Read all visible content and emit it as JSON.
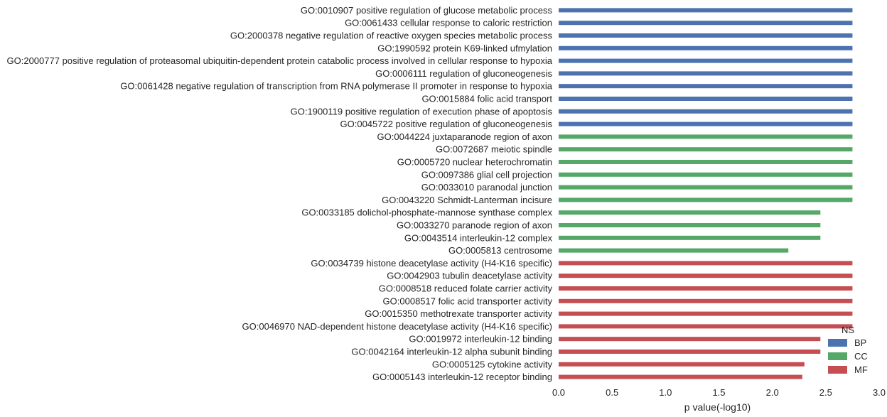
{
  "chart_data": {
    "type": "bar",
    "orientation": "horizontal",
    "xlabel": "p value(-log10)",
    "xlim": [
      0.0,
      3.0
    ],
    "xticks": [
      "0.0",
      "0.5",
      "1.0",
      "1.5",
      "2.0",
      "2.5",
      "3.0"
    ],
    "grid": false,
    "legend": {
      "title": "NS",
      "placement": "bottom-right",
      "entries": [
        {
          "name": "BP",
          "color": "#4c72b0"
        },
        {
          "name": "CC",
          "color": "#55a868"
        },
        {
          "name": "MF",
          "color": "#c44e52"
        }
      ]
    },
    "bars": [
      {
        "label": "GO:0010907 positive regulation of glucose metabolic process",
        "value": 2.75,
        "series": "BP"
      },
      {
        "label": "GO:0061433 cellular response to caloric restriction",
        "value": 2.75,
        "series": "BP"
      },
      {
        "label": "GO:2000378 negative regulation of reactive oxygen species metabolic process",
        "value": 2.75,
        "series": "BP"
      },
      {
        "label": "GO:1990592 protein K69-linked ufmylation",
        "value": 2.75,
        "series": "BP"
      },
      {
        "label": "GO:2000777 positive regulation of proteasomal ubiquitin-dependent protein catabolic process involved in cellular response to hypoxia",
        "value": 2.75,
        "series": "BP"
      },
      {
        "label": "GO:0006111 regulation of gluconeogenesis",
        "value": 2.75,
        "series": "BP"
      },
      {
        "label": "GO:0061428 negative regulation of transcription from RNA polymerase II promoter in response to hypoxia",
        "value": 2.75,
        "series": "BP"
      },
      {
        "label": "GO:0015884 folic acid transport",
        "value": 2.75,
        "series": "BP"
      },
      {
        "label": "GO:1900119 positive regulation of execution phase of apoptosis",
        "value": 2.75,
        "series": "BP"
      },
      {
        "label": "GO:0045722 positive regulation of gluconeogenesis",
        "value": 2.75,
        "series": "BP"
      },
      {
        "label": "GO:0044224 juxtaparanode region of axon",
        "value": 2.75,
        "series": "CC"
      },
      {
        "label": "GO:0072687 meiotic spindle",
        "value": 2.75,
        "series": "CC"
      },
      {
        "label": "GO:0005720 nuclear heterochromatin",
        "value": 2.75,
        "series": "CC"
      },
      {
        "label": "GO:0097386 glial cell projection",
        "value": 2.75,
        "series": "CC"
      },
      {
        "label": "GO:0033010 paranodal junction",
        "value": 2.75,
        "series": "CC"
      },
      {
        "label": "GO:0043220 Schmidt-Lanterman incisure",
        "value": 2.75,
        "series": "CC"
      },
      {
        "label": "GO:0033185 dolichol-phosphate-mannose synthase complex",
        "value": 2.45,
        "series": "CC"
      },
      {
        "label": "GO:0033270 paranode region of axon",
        "value": 2.45,
        "series": "CC"
      },
      {
        "label": "GO:0043514 interleukin-12 complex",
        "value": 2.45,
        "series": "CC"
      },
      {
        "label": "GO:0005813 centrosome",
        "value": 2.15,
        "series": "CC"
      },
      {
        "label": "GO:0034739 histone deacetylase activity (H4-K16 specific)",
        "value": 2.75,
        "series": "MF"
      },
      {
        "label": "GO:0042903 tubulin deacetylase activity",
        "value": 2.75,
        "series": "MF"
      },
      {
        "label": "GO:0008518 reduced folate carrier activity",
        "value": 2.75,
        "series": "MF"
      },
      {
        "label": "GO:0008517 folic acid transporter activity",
        "value": 2.75,
        "series": "MF"
      },
      {
        "label": "GO:0015350 methotrexate transporter activity",
        "value": 2.75,
        "series": "MF"
      },
      {
        "label": "GO:0046970 NAD-dependent histone deacetylase activity (H4-K16 specific)",
        "value": 2.75,
        "series": "MF"
      },
      {
        "label": "GO:0019972 interleukin-12 binding",
        "value": 2.45,
        "series": "MF"
      },
      {
        "label": "GO:0042164 interleukin-12 alpha subunit binding",
        "value": 2.45,
        "series": "MF"
      },
      {
        "label": "GO:0005125 cytokine activity",
        "value": 2.3,
        "series": "MF"
      },
      {
        "label": "GO:0005143 interleukin-12 receptor binding",
        "value": 2.28,
        "series": "MF"
      }
    ]
  }
}
